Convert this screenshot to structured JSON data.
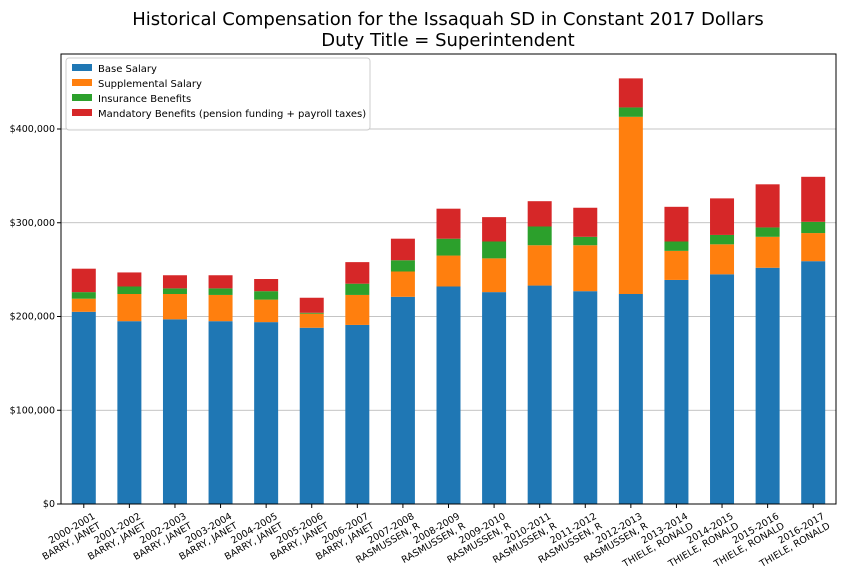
{
  "chart_data": {
    "type": "bar",
    "stacked": true,
    "title_line1": "Historical Compensation for the Issaquah SD in Constant 2017 Dollars",
    "title_line2": "Duty Title = Superintendent",
    "xlabel": "",
    "ylabel": "",
    "ylim": [
      0,
      480000
    ],
    "yticks": [
      0,
      100000,
      200000,
      300000,
      400000
    ],
    "ytick_labels": [
      "$0",
      "$100,000",
      "$200,000",
      "$300,000",
      "$400,000"
    ],
    "grid": "horizontal",
    "legend_position": "top-left",
    "categories": [
      [
        "2000-2001",
        "BARRY, JANET"
      ],
      [
        "2001-2002",
        "BARRY, JANET"
      ],
      [
        "2002-2003",
        "BARRY, JANET"
      ],
      [
        "2003-2004",
        "BARRY, JANET"
      ],
      [
        "2004-2005",
        "BARRY, JANET"
      ],
      [
        "2005-2006",
        "BARRY, JANET"
      ],
      [
        "2006-2007",
        "BARRY, JANET"
      ],
      [
        "2007-2008",
        "RASMUSSEN, R"
      ],
      [
        "2008-2009",
        "RASMUSSEN, R"
      ],
      [
        "2009-2010",
        "RASMUSSEN, R"
      ],
      [
        "2010-2011",
        "RASMUSSEN, R"
      ],
      [
        "2011-2012",
        "RASMUSSEN, R"
      ],
      [
        "2012-2013",
        "RASMUSSEN, R"
      ],
      [
        "2013-2014",
        "THIELE, RONALD"
      ],
      [
        "2014-2015",
        "THIELE, RONALD"
      ],
      [
        "2015-2016",
        "THIELE, RONALD"
      ],
      [
        "2016-2017",
        "THIELE, RONALD"
      ]
    ],
    "series": [
      {
        "name": "Base Salary",
        "color": "#1f77b4",
        "values": [
          205000,
          195000,
          197000,
          195000,
          194000,
          188000,
          191000,
          221000,
          232000,
          226000,
          233000,
          227000,
          224000,
          239000,
          245000,
          252000,
          259000
        ]
      },
      {
        "name": "Supplemental Salary",
        "color": "#ff7f0e",
        "values": [
          14000,
          29000,
          27000,
          28000,
          24000,
          15000,
          32000,
          27000,
          33000,
          36000,
          43000,
          49000,
          189000,
          31000,
          32000,
          33000,
          30000
        ]
      },
      {
        "name": "Insurance Benefits",
        "color": "#2ca02c",
        "values": [
          7000,
          8000,
          6000,
          7000,
          9000,
          1000,
          12000,
          12000,
          18000,
          18000,
          20000,
          9000,
          10000,
          10000,
          10000,
          10000,
          12000
        ]
      },
      {
        "name": "Mandatory Benefits (pension funding + payroll taxes)",
        "color": "#d62728",
        "values": [
          25000,
          15000,
          14000,
          14000,
          13000,
          16000,
          23000,
          23000,
          32000,
          26000,
          27000,
          31000,
          31000,
          37000,
          39000,
          46000,
          48000
        ]
      }
    ]
  }
}
